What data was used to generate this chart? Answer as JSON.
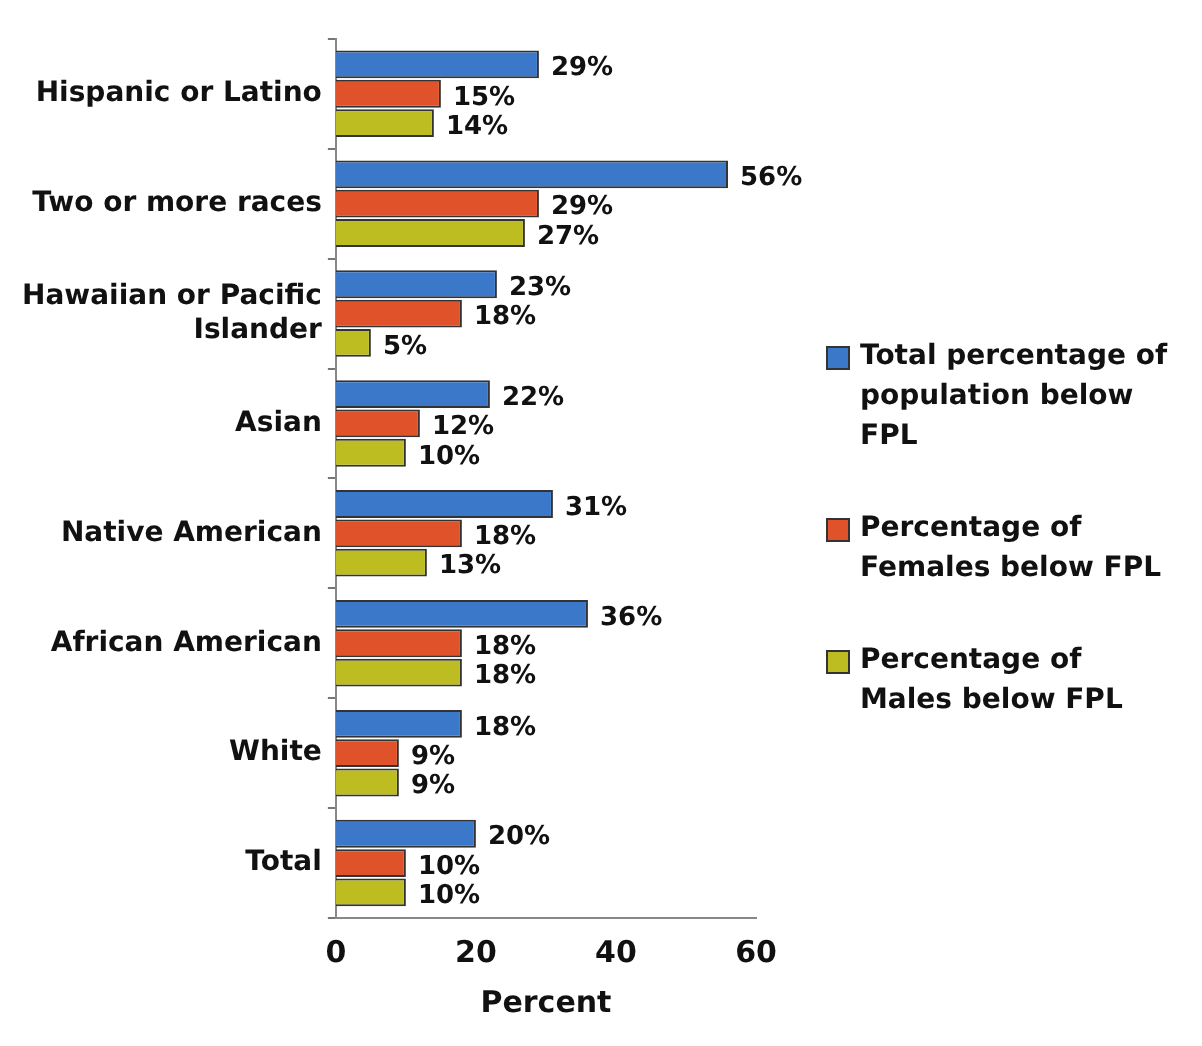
{
  "chart_data": {
    "type": "bar",
    "orientation": "horizontal",
    "xlabel": "Percent",
    "categories": [
      "Hispanic or Latino",
      "Two or more races",
      "Hawaiian or Pacific Islander",
      "Asian",
      "Native American",
      "African American",
      "White",
      "Total"
    ],
    "series": [
      {
        "name": "Total percentage of population below FPL",
        "color": "#3b78c9",
        "values": [
          29,
          56,
          23,
          22,
          31,
          36,
          18,
          20
        ],
        "value_labels": [
          "29%",
          "56%",
          "23%",
          "22%",
          "31%",
          "36%",
          "18%",
          "20%"
        ]
      },
      {
        "name": "Percentage of Females below FPL",
        "color": "#e0522a",
        "values": [
          15,
          29,
          18,
          12,
          18,
          18,
          9,
          10
        ],
        "value_labels": [
          "15%",
          "29%",
          "18%",
          "12%",
          "18%",
          "18%",
          "9%",
          "10%"
        ]
      },
      {
        "name": "Percentage of Males below FPL",
        "color": "#bdbd22",
        "values": [
          14,
          27,
          5,
          10,
          13,
          18,
          9,
          10
        ],
        "value_labels": [
          "14%",
          "27%",
          "5%",
          "10%",
          "13%",
          "18%",
          "9%",
          "10%"
        ]
      }
    ],
    "xlim": [
      0,
      60
    ],
    "xticks": [
      0,
      20,
      40,
      60
    ],
    "grid": false,
    "legend": "right"
  }
}
